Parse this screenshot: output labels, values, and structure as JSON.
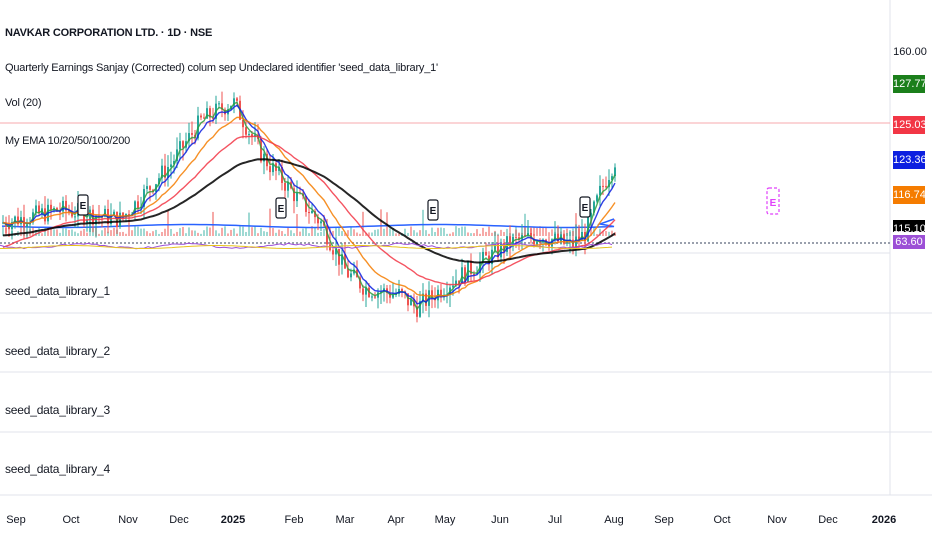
{
  "header": {
    "symbol_title": "NAVKAR CORPORATION LTD. · 1D · NSE",
    "indicator_1": "Quarterly Earnings Sanjay (Corrected) colum sep Undeclared identifier 'seed_data_library_1'",
    "indicator_2": "Vol (20)",
    "indicator_3": "My EMA 10/20/50/100/200"
  },
  "price_axis": {
    "top_label": "160.00",
    "tags": [
      {
        "value": "127.77",
        "color": "#1b7f1b"
      },
      {
        "value": "125.03",
        "color": "#f23645"
      },
      {
        "value": "123.36",
        "color": "#0c1fe0"
      },
      {
        "value": "116.74",
        "color": "#f57c00"
      },
      {
        "value": "115.10",
        "color": "#000000"
      },
      {
        "value": "63.60",
        "color": "#9c4fd6"
      }
    ]
  },
  "panes": [
    {
      "label": "seed_data_library_1"
    },
    {
      "label": "seed_data_library_2"
    },
    {
      "label": "seed_data_library_3"
    },
    {
      "label": "seed_data_library_4"
    }
  ],
  "earnings_marker": "E",
  "chart_data": {
    "type": "candlestick",
    "title": "NAVKAR CORPORATION LTD. · 1D · NSE",
    "x_axis": {
      "ticks": [
        "Sep",
        "Oct",
        "Nov",
        "Dec",
        "2025",
        "Feb",
        "Mar",
        "Apr",
        "May",
        "Jun",
        "Jul",
        "Aug",
        "Sep",
        "Oct",
        "Nov",
        "Dec",
        "2026"
      ],
      "bold_ticks": [
        "2025",
        "2026"
      ]
    },
    "y_axis": {
      "visible_label": "160.00"
    },
    "price_series": [
      [
        "Sep",
        108
      ],
      [
        "Oct",
        112
      ],
      [
        "Nov",
        109
      ],
      [
        "Dec",
        126
      ],
      [
        "Dec",
        139
      ],
      [
        "2025",
        145
      ],
      [
        "2025",
        128
      ],
      [
        "Feb",
        116
      ],
      [
        "Feb",
        108
      ],
      [
        "Mar",
        93
      ],
      [
        "Mar",
        88
      ],
      [
        "Apr",
        86
      ],
      [
        "Apr",
        82
      ],
      [
        "May",
        90
      ],
      [
        "May",
        96
      ],
      [
        "Jun",
        102
      ],
      [
        "Jun",
        104
      ],
      [
        "Jul",
        101
      ],
      [
        "Jul",
        105
      ],
      [
        "Jul",
        118
      ],
      [
        "Aug",
        127.77
      ]
    ],
    "ema_lines": [
      {
        "name": "EMA 10",
        "color": "#2e9e3e",
        "last_value": 127.77
      },
      {
        "name": "EMA 20",
        "color": "#0c1fe0",
        "last_value": 123.36
      },
      {
        "name": "EMA 50",
        "color": "#f57c00",
        "last_value": 116.74
      },
      {
        "name": "EMA 100",
        "color": "#f23645",
        "last_value": 125.03
      },
      {
        "name": "EMA 200",
        "color": "#000000",
        "last_value": 115.1
      }
    ],
    "earnings_events": [
      "2024-11",
      "2025-02",
      "2025-05",
      "2025-07",
      "2025-11"
    ],
    "grid": false
  }
}
